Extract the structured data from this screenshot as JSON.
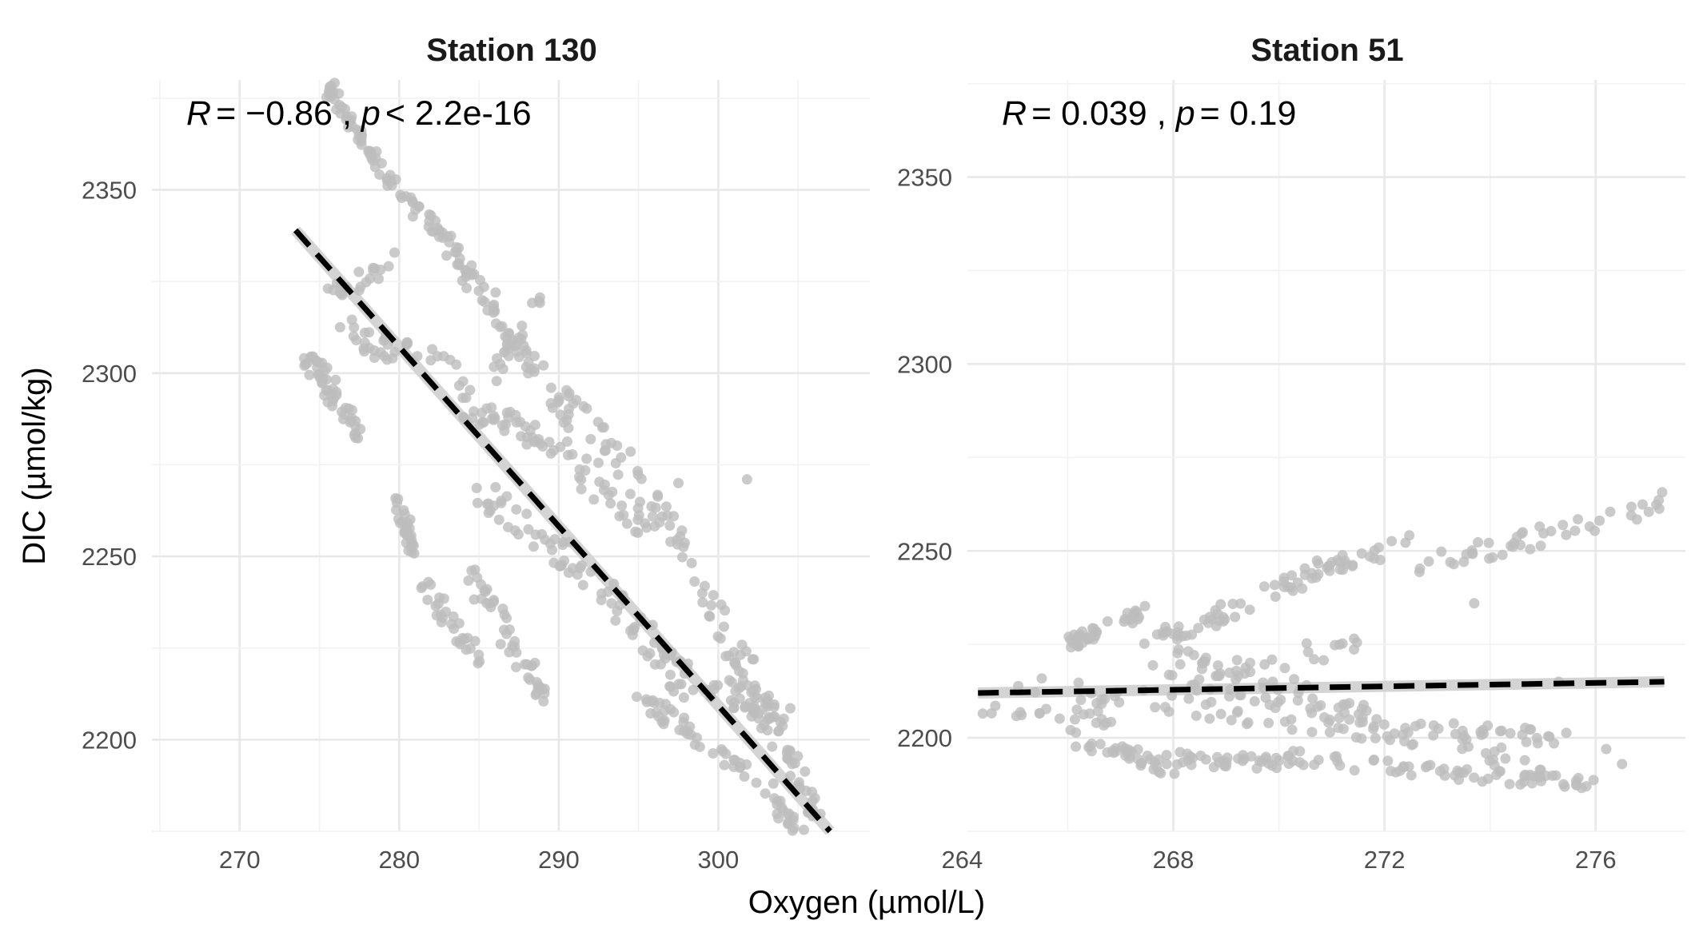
{
  "figure": {
    "xlabel": "Oxygen (µmol/L)",
    "ylabel": "DIC (µmol/kg)"
  },
  "chart_data": [
    {
      "type": "scatter",
      "title": "Station 130",
      "annotation": {
        "r_label": "R",
        "r_value": "= −0.86",
        "p_label": "p",
        "p_value": "< 2.2e-16",
        "separator": ","
      },
      "xlim": [
        264.5,
        309.5
      ],
      "ylim": [
        2175,
        2380
      ],
      "xticks": [
        270,
        280,
        290,
        300
      ],
      "xtick_labels": [
        "270",
        "280",
        "290",
        "300"
      ],
      "yticks": [
        2200,
        2250,
        2300,
        2350
      ],
      "ytick_labels": [
        "2200",
        "2250",
        "2300",
        "2350"
      ],
      "fit": {
        "x": [
          273.5,
          307.0
        ],
        "y": [
          2339,
          2175
        ],
        "style": "dashed"
      },
      "point_color": "#bdbdbd",
      "segments": [
        {
          "x0": 275.5,
          "y0": 2378,
          "x1": 278.5,
          "y1": 2358,
          "n": 40,
          "j": 2.5
        },
        {
          "x0": 278.5,
          "y0": 2358,
          "x1": 284.0,
          "y1": 2330,
          "n": 45,
          "j": 3
        },
        {
          "x0": 284.0,
          "y0": 2330,
          "x1": 288.5,
          "y1": 2300,
          "n": 45,
          "j": 4
        },
        {
          "x0": 288.5,
          "y0": 2300,
          "x1": 296.0,
          "y1": 2265,
          "n": 40,
          "j": 6
        },
        {
          "x0": 296.0,
          "y0": 2265,
          "x1": 303.0,
          "y1": 2210,
          "n": 40,
          "j": 6
        },
        {
          "x0": 303.0,
          "y0": 2210,
          "x1": 307.0,
          "y1": 2170,
          "n": 40,
          "j": 4
        },
        {
          "x0": 274.0,
          "y0": 2305,
          "x1": 277.5,
          "y1": 2285,
          "n": 50,
          "j": 4
        },
        {
          "x0": 275.5,
          "y0": 2322,
          "x1": 279.5,
          "y1": 2330,
          "n": 20,
          "j": 3
        },
        {
          "x0": 276.0,
          "y0": 2312,
          "x1": 284.0,
          "y1": 2300,
          "n": 35,
          "j": 4
        },
        {
          "x0": 284.0,
          "y0": 2292,
          "x1": 291.0,
          "y1": 2278,
          "n": 45,
          "j": 4
        },
        {
          "x0": 291.0,
          "y0": 2275,
          "x1": 296.0,
          "y1": 2255,
          "n": 25,
          "j": 5
        },
        {
          "x0": 280.0,
          "y0": 2265,
          "x1": 281.0,
          "y1": 2250,
          "n": 30,
          "j": 3
        },
        {
          "x0": 281.5,
          "y0": 2242,
          "x1": 285.0,
          "y1": 2222,
          "n": 30,
          "j": 4
        },
        {
          "x0": 284.5,
          "y0": 2245,
          "x1": 290.0,
          "y1": 2205,
          "n": 45,
          "j": 4
        },
        {
          "x0": 284.5,
          "y0": 2270,
          "x1": 292.0,
          "y1": 2245,
          "n": 40,
          "j": 5
        },
        {
          "x0": 292.0,
          "y0": 2245,
          "x1": 298.0,
          "y1": 2215,
          "n": 35,
          "j": 5
        },
        {
          "x0": 295.0,
          "y0": 2212,
          "x1": 303.5,
          "y1": 2185,
          "n": 45,
          "j": 3
        },
        {
          "x0": 296.0,
          "y0": 2222,
          "x1": 304.5,
          "y1": 2205,
          "n": 35,
          "j": 4
        },
        {
          "x0": 300.5,
          "y0": 2222,
          "x1": 304.0,
          "y1": 2198,
          "n": 25,
          "j": 5
        },
        {
          "x0": 303.5,
          "y0": 2182,
          "x1": 307.0,
          "y1": 2165,
          "n": 35,
          "j": 3
        },
        {
          "x0": 286.0,
          "y0": 2300,
          "x1": 289.0,
          "y1": 2320,
          "n": 20,
          "j": 4
        }
      ],
      "extra_points": [
        [
          301.8,
          2271
        ],
        [
          297.0,
          2254
        ],
        [
          304.5,
          2197
        ],
        [
          297.5,
          2270
        ],
        [
          292.0,
          2282
        ],
        [
          283.5,
          2333
        ]
      ]
    },
    {
      "type": "scatter",
      "title": "Station 51",
      "annotation": {
        "r_label": "R",
        "r_value": "= 0.039",
        "p_label": "p",
        "p_value": "= 0.19",
        "separator": ","
      },
      "xlim": [
        264.1,
        277.7
      ],
      "ylim": [
        2175,
        2376
      ],
      "xticks": [
        264,
        268,
        272,
        276
      ],
      "xtick_labels": [
        "264",
        "268",
        "272",
        "276"
      ],
      "yticks": [
        2200,
        2250,
        2300,
        2350
      ],
      "ytick_labels": [
        "2200",
        "2250",
        "2300",
        "2350"
      ],
      "fit": {
        "x": [
          264.3,
          277.3
        ],
        "y": [
          2212,
          2215
        ],
        "style": "dashed"
      },
      "point_color": "#bdbdbd",
      "segments": [
        {
          "x0": 266.0,
          "y0": 2225,
          "x1": 267.5,
          "y1": 2234,
          "n": 40,
          "j": 2
        },
        {
          "x0": 267.5,
          "y0": 2225,
          "x1": 270.0,
          "y1": 2240,
          "n": 35,
          "j": 3
        },
        {
          "x0": 270.0,
          "y0": 2240,
          "x1": 272.5,
          "y1": 2254,
          "n": 40,
          "j": 3
        },
        {
          "x0": 272.5,
          "y0": 2245,
          "x1": 277.3,
          "y1": 2263,
          "n": 45,
          "j": 3
        },
        {
          "x0": 265.0,
          "y0": 2215,
          "x1": 272.5,
          "y1": 2200,
          "n": 50,
          "j": 3
        },
        {
          "x0": 264.3,
          "y0": 2207,
          "x1": 267.0,
          "y1": 2205,
          "n": 20,
          "j": 2
        },
        {
          "x0": 266.0,
          "y0": 2196,
          "x1": 270.0,
          "y1": 2193,
          "n": 45,
          "j": 2
        },
        {
          "x0": 270.0,
          "y0": 2195,
          "x1": 276.0,
          "y1": 2187,
          "n": 60,
          "j": 2
        },
        {
          "x0": 267.5,
          "y0": 2218,
          "x1": 272.5,
          "y1": 2203,
          "n": 45,
          "j": 3
        },
        {
          "x0": 272.5,
          "y0": 2203,
          "x1": 275.5,
          "y1": 2200,
          "n": 25,
          "j": 2
        },
        {
          "x0": 268.0,
          "y0": 2222,
          "x1": 271.0,
          "y1": 2212,
          "n": 25,
          "j": 3
        },
        {
          "x0": 273.5,
          "y0": 2200,
          "x1": 275.5,
          "y1": 2185,
          "n": 25,
          "j": 3
        },
        {
          "x0": 266.0,
          "y0": 2202,
          "x1": 268.0,
          "y1": 2190,
          "n": 25,
          "j": 2
        },
        {
          "x0": 268.5,
          "y0": 2218,
          "x1": 271.5,
          "y1": 2225,
          "n": 20,
          "j": 3
        }
      ],
      "extra_points": [
        [
          276.5,
          2193
        ],
        [
          273.7,
          2236
        ],
        [
          275.3,
          2215
        ],
        [
          276.2,
          2197
        ]
      ]
    }
  ]
}
